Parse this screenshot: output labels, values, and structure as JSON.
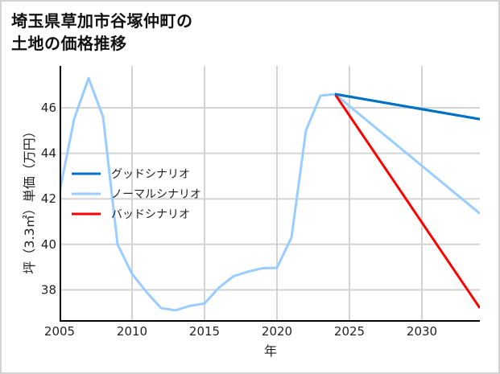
{
  "title": {
    "line1": "埼玉県草加市谷塚仲町の",
    "line2": "土地の価格推移"
  },
  "colors": {
    "good": "#0072c6",
    "normal": "#99ccff",
    "bad": "#ff0000",
    "grid": "#d3d3d3",
    "axis": "#000000"
  },
  "chart_data": {
    "type": "line",
    "title": "埼玉県草加市谷塚仲町の土地の価格推移",
    "xlabel": "年",
    "ylabel": "坪（3.3㎡）単価（万円）",
    "xlim": [
      2005,
      2034
    ],
    "ylim": [
      36.7,
      47.8
    ],
    "x_ticks": [
      2005,
      2010,
      2015,
      2020,
      2025,
      2030
    ],
    "y_ticks": [
      38,
      40,
      42,
      44,
      46
    ],
    "grid": true,
    "legend_position": "center-left",
    "historical": {
      "x": [
        2005,
        2006,
        2007,
        2008,
        2009,
        2010,
        2011,
        2012,
        2013,
        2014,
        2015,
        2016,
        2017,
        2018,
        2019,
        2020,
        2021,
        2022,
        2023,
        2024
      ],
      "values": [
        42.3,
        45.5,
        47.3,
        45.6,
        40.0,
        38.7,
        37.9,
        37.2,
        37.1,
        37.3,
        37.4,
        38.1,
        38.6,
        38.8,
        38.95,
        38.97,
        40.3,
        45.0,
        46.53,
        46.6
      ]
    },
    "series": [
      {
        "name": "グッドシナリオ",
        "color": "#0072c6",
        "x": [
          2024,
          2034
        ],
        "values": [
          46.6,
          45.5
        ]
      },
      {
        "name": "ノーマルシナリオ",
        "color": "#99ccff",
        "x": [
          2024,
          2034
        ],
        "values": [
          46.6,
          41.35
        ]
      },
      {
        "name": "バッドシナリオ",
        "color": "#ff0000",
        "x": [
          2024,
          2034
        ],
        "values": [
          46.6,
          37.2
        ]
      }
    ]
  },
  "legend": {
    "items": [
      {
        "label": "グッドシナリオ",
        "color": "#0072c6"
      },
      {
        "label": "ノーマルシナリオ",
        "color": "#99ccff"
      },
      {
        "label": "バッドシナリオ",
        "color": "#ff0000"
      }
    ]
  },
  "axes": {
    "x_label": "年",
    "y_label": "坪（3.3㎡）単価（万円）",
    "x_tick_labels": [
      "2005",
      "2010",
      "2015",
      "2020",
      "2025",
      "2030"
    ],
    "y_tick_labels": [
      "38",
      "40",
      "42",
      "44",
      "46"
    ]
  }
}
